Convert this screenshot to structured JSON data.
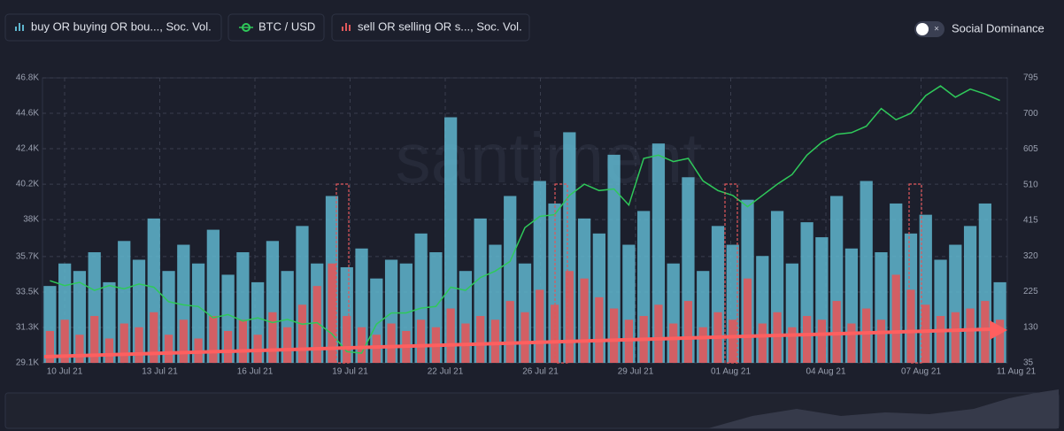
{
  "chart_data": {
    "type": "bar_line",
    "toggle_label": "Social Dominance",
    "watermark": "santiment",
    "xticks": [
      "10 Jul 21",
      "13 Jul 21",
      "16 Jul 21",
      "19 Jul 21",
      "22 Jul 21",
      "26 Jul 21",
      "29 Jul 21",
      "01 Aug 21",
      "04 Aug 21",
      "07 Aug 21",
      "11 Aug 21"
    ],
    "ylim": [
      29100,
      46800
    ],
    "yticks": [
      {
        "value": 29100,
        "label": "29.1K"
      },
      {
        "value": 31300,
        "label": "31.3K"
      },
      {
        "value": 33500,
        "label": "33.5K"
      },
      {
        "value": 35700,
        "label": "35.7K"
      },
      {
        "value": 38000,
        "label": "38K"
      },
      {
        "value": 40200,
        "label": "40.2K"
      },
      {
        "value": 42400,
        "label": "42.4K"
      },
      {
        "value": 44600,
        "label": "44.6K"
      },
      {
        "value": 46800,
        "label": "46.8K"
      }
    ],
    "y2lim": [
      35,
      795
    ],
    "y2ticks": [
      35,
      130,
      225,
      320,
      415,
      510,
      605,
      700,
      795
    ],
    "grid": true,
    "series": [
      {
        "name": "buy OR buying OR bou..., Soc. Vol.",
        "type": "bar",
        "axis": "y2",
        "color": "#5fb6cf",
        "values": [
          240,
          300,
          280,
          330,
          250,
          360,
          310,
          420,
          280,
          350,
          300,
          390,
          270,
          330,
          250,
          360,
          280,
          400,
          300,
          480,
          290,
          340,
          260,
          310,
          300,
          380,
          330,
          690,
          280,
          420,
          350,
          480,
          300,
          520,
          460,
          650,
          420,
          380,
          590,
          350,
          440,
          620,
          300,
          530,
          280,
          400,
          350,
          470,
          320,
          440,
          300,
          410,
          370,
          480,
          340,
          520,
          330,
          460,
          380,
          430,
          310,
          350,
          400,
          460,
          250
        ]
      },
      {
        "name": "BTC / USD",
        "type": "line",
        "color": "#2fc95a",
        "values": [
          34200,
          33900,
          34100,
          33600,
          33900,
          33700,
          34000,
          33800,
          32900,
          32700,
          32600,
          31900,
          32100,
          31700,
          31900,
          31600,
          31800,
          31500,
          31600,
          30900,
          29800,
          29700,
          31500,
          32200,
          32200,
          32500,
          32600,
          33800,
          33600,
          34400,
          34800,
          35400,
          37500,
          38200,
          38300,
          39500,
          40200,
          39800,
          39900,
          38900,
          41800,
          42000,
          41600,
          41800,
          40400,
          39800,
          39500,
          38800,
          39500,
          40200,
          40800,
          42000,
          42800,
          43300,
          43400,
          43800,
          44900,
          44200,
          44600,
          45700,
          46300,
          45600,
          46100,
          45800,
          45400
        ]
      },
      {
        "name": "sell OR selling OR s..., Soc. Vol.",
        "type": "bar",
        "axis": "y2",
        "color": "#e0585b",
        "values": [
          120,
          150,
          110,
          160,
          100,
          140,
          130,
          170,
          110,
          150,
          100,
          160,
          120,
          150,
          110,
          170,
          130,
          190,
          240,
          300,
          160,
          130,
          110,
          140,
          120,
          150,
          130,
          180,
          140,
          160,
          150,
          200,
          170,
          230,
          190,
          280,
          260,
          210,
          180,
          150,
          160,
          190,
          140,
          200,
          130,
          170,
          150,
          260,
          140,
          170,
          130,
          160,
          150,
          200,
          140,
          180,
          150,
          270,
          230,
          190,
          160,
          170,
          180,
          200,
          150
        ]
      }
    ]
  }
}
